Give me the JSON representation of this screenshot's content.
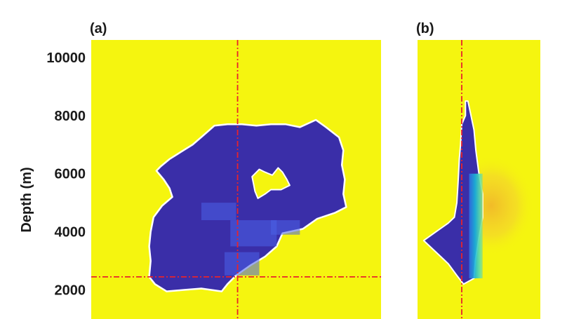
{
  "chart_data": [
    {
      "type": "heatmap",
      "panel_label": "(a)",
      "ylabel": "Depth (m)",
      "ytick_labels": [
        "2000",
        "4000",
        "6000",
        "8000",
        "10000"
      ],
      "yticks": [
        2000,
        4000,
        6000,
        8000,
        10000
      ],
      "ylim": [
        1000,
        10600
      ],
      "xlim": [
        0,
        1
      ],
      "background_color": "#f5f50f",
      "body_color": "#3a2ea8",
      "highlight_color": "#4a63e8",
      "outline_color": "#ffffff",
      "crosshair_color": "#e8232b",
      "crosshair_x": 0.505,
      "crosshair_y_depth": 2450,
      "body_outline": [
        [
          0.24,
          6250
        ],
        [
          0.27,
          6500
        ],
        [
          0.31,
          6750
        ],
        [
          0.35,
          7000
        ],
        [
          0.385,
          7300
        ],
        [
          0.425,
          7650
        ],
        [
          0.47,
          7700
        ],
        [
          0.52,
          7700
        ],
        [
          0.57,
          7650
        ],
        [
          0.62,
          7700
        ],
        [
          0.67,
          7700
        ],
        [
          0.72,
          7600
        ],
        [
          0.775,
          7850
        ],
        [
          0.81,
          7600
        ],
        [
          0.855,
          7250
        ],
        [
          0.87,
          6800
        ],
        [
          0.865,
          6300
        ],
        [
          0.875,
          5800
        ],
        [
          0.87,
          5300
        ],
        [
          0.88,
          4850
        ],
        [
          0.84,
          4650
        ],
        [
          0.78,
          4450
        ],
        [
          0.73,
          4100
        ],
        [
          0.66,
          3950
        ],
        [
          0.64,
          3500
        ],
        [
          0.6,
          3150
        ],
        [
          0.55,
          2850
        ],
        [
          0.5,
          2500
        ],
        [
          0.47,
          2200
        ],
        [
          0.45,
          1950
        ],
        [
          0.38,
          2050
        ],
        [
          0.32,
          2000
        ],
        [
          0.26,
          1950
        ],
        [
          0.22,
          2200
        ],
        [
          0.2,
          2450
        ],
        [
          0.205,
          3000
        ],
        [
          0.2,
          3500
        ],
        [
          0.205,
          4000
        ],
        [
          0.215,
          4500
        ],
        [
          0.245,
          4900
        ],
        [
          0.28,
          5200
        ],
        [
          0.27,
          5500
        ],
        [
          0.25,
          5800
        ],
        [
          0.225,
          6100
        ]
      ],
      "hole_outline": [
        [
          0.555,
          5900
        ],
        [
          0.58,
          6150
        ],
        [
          0.6,
          6050
        ],
        [
          0.625,
          5950
        ],
        [
          0.645,
          6200
        ],
        [
          0.66,
          6050
        ],
        [
          0.675,
          5800
        ],
        [
          0.685,
          5600
        ],
        [
          0.655,
          5450
        ],
        [
          0.62,
          5450
        ],
        [
          0.6,
          5300
        ],
        [
          0.575,
          5150
        ],
        [
          0.565,
          5400
        ],
        [
          0.56,
          5650
        ]
      ],
      "highlight_patches": [
        [
          0.38,
          4400,
          0.12,
          600
        ],
        [
          0.48,
          3500,
          0.16,
          900
        ],
        [
          0.62,
          3900,
          0.1,
          500
        ],
        [
          0.46,
          2500,
          0.12,
          800
        ]
      ]
    },
    {
      "type": "heatmap",
      "panel_label": "(b)",
      "ylim": [
        1000,
        10600
      ],
      "xlim": [
        0,
        1
      ],
      "background_color": "#f5f50f",
      "body_color": "#3a2ea8",
      "outline_color": "#ffffff",
      "crosshair_color": "#e8232b",
      "crosshair_x": 0.36,
      "body_outline": [
        [
          0.375,
          2200
        ],
        [
          0.46,
          2400
        ],
        [
          0.47,
          3000
        ],
        [
          0.5,
          3800
        ],
        [
          0.53,
          4500
        ],
        [
          0.53,
          5300
        ],
        [
          0.5,
          6000
        ],
        [
          0.475,
          6800
        ],
        [
          0.46,
          7500
        ],
        [
          0.43,
          8100
        ],
        [
          0.41,
          8500
        ],
        [
          0.39,
          8500
        ],
        [
          0.39,
          8000
        ],
        [
          0.36,
          7700
        ],
        [
          0.35,
          7000
        ],
        [
          0.34,
          6500
        ],
        [
          0.33,
          5700
        ],
        [
          0.32,
          5000
        ],
        [
          0.3,
          4500
        ],
        [
          0.25,
          4300
        ],
        [
          0.15,
          4000
        ],
        [
          0.05,
          3700
        ],
        [
          0.15,
          3300
        ],
        [
          0.25,
          2900
        ],
        [
          0.32,
          2500
        ]
      ],
      "gradient_strip": [
        0.42,
        0.53,
        2400,
        6000
      ],
      "diffuse_patch": [
        0.6,
        4900,
        0.35,
        0.18,
        "#f0a830"
      ]
    }
  ]
}
